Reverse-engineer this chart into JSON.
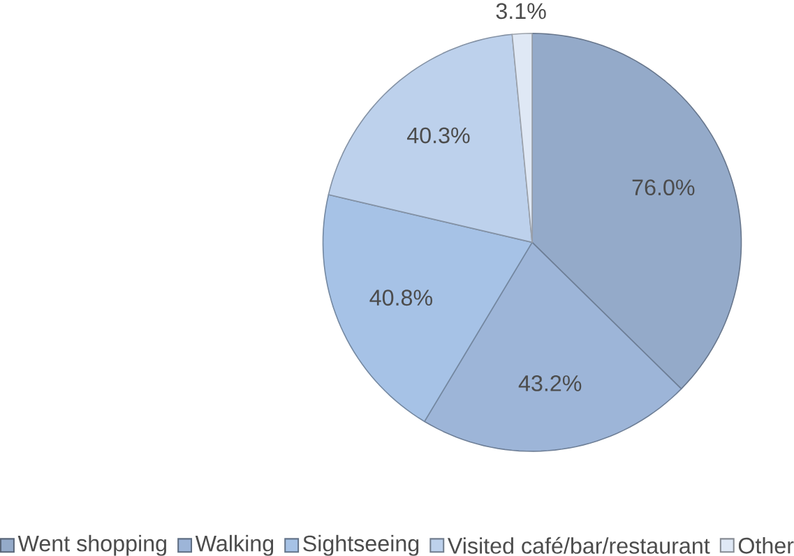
{
  "chart_data": {
    "type": "pie",
    "categories": [
      "Went shopping",
      "Walking",
      "Sightseeing",
      "Visited café/bar/restaurant",
      "Other"
    ],
    "values": [
      76.0,
      43.2,
      40.8,
      40.3,
      3.1
    ],
    "value_labels": [
      "76.0%",
      "43.2%",
      "40.8%",
      "40.3%",
      "3.1%"
    ],
    "colors": [
      "#94aac9",
      "#9db5d8",
      "#a6c2e6",
      "#bdd1ec",
      "#dfe8f5"
    ],
    "legend": "bottom"
  }
}
